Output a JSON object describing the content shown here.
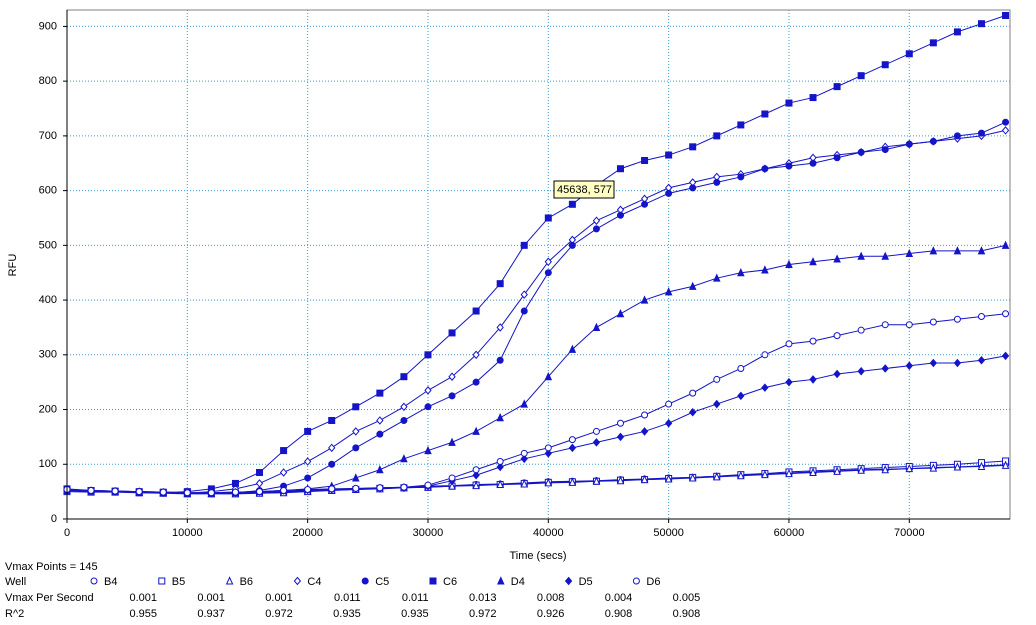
{
  "chart_data": {
    "type": "line",
    "xlabel": "Time (secs)",
    "ylabel": "RFU",
    "xlim": [
      0,
      78370
    ],
    "ylim": [
      0,
      930
    ],
    "xticks": [
      0,
      10000,
      20000,
      30000,
      40000,
      50000,
      60000,
      70000
    ],
    "yticks": [
      0,
      100,
      200,
      300,
      400,
      500,
      600,
      700,
      800,
      900
    ],
    "grid": true,
    "annotation": "45638, 577",
    "x": [
      0,
      2000,
      4000,
      6000,
      8000,
      10000,
      12000,
      14000,
      16000,
      18000,
      20000,
      22000,
      24000,
      26000,
      28000,
      30000,
      32000,
      34000,
      36000,
      38000,
      40000,
      42000,
      44000,
      46000,
      48000,
      50000,
      52000,
      54000,
      56000,
      58000,
      60000,
      62000,
      64000,
      66000,
      68000,
      70000,
      72000,
      74000,
      76000,
      78000
    ],
    "series": [
      {
        "name": "B4",
        "color": "#1414c8",
        "marker": "circle-open",
        "values": [
          52,
          51,
          50,
          49,
          48,
          47,
          47,
          48,
          49,
          50,
          52,
          54,
          55,
          57,
          58,
          60,
          61,
          63,
          64,
          66,
          68,
          69,
          70,
          72,
          73,
          75,
          76,
          78,
          80,
          82,
          84,
          86,
          88,
          90,
          91,
          92,
          94,
          95,
          97,
          99
        ]
      },
      {
        "name": "B5",
        "color": "#1414c8",
        "marker": "square-open",
        "values": [
          54,
          52,
          51,
          50,
          49,
          48,
          47,
          47,
          48,
          49,
          51,
          53,
          54,
          56,
          57,
          58,
          60,
          62,
          63,
          65,
          67,
          68,
          69,
          71,
          72,
          74,
          76,
          78,
          81,
          83,
          86,
          88,
          90,
          92,
          94,
          96,
          98,
          100,
          103,
          106
        ]
      },
      {
        "name": "B6",
        "color": "#1414c8",
        "marker": "triangle-open",
        "values": [
          50,
          49,
          49,
          48,
          47,
          46,
          46,
          46,
          47,
          48,
          50,
          52,
          54,
          55,
          57,
          58,
          60,
          61,
          63,
          64,
          66,
          67,
          69,
          70,
          72,
          73,
          75,
          77,
          79,
          81,
          83,
          85,
          87,
          89,
          90,
          92,
          93,
          95,
          96,
          98
        ]
      },
      {
        "name": "C4",
        "color": "#1414c8",
        "marker": "diamond-open",
        "values": [
          53,
          51,
          50,
          49,
          48,
          47,
          50,
          55,
          65,
          85,
          105,
          130,
          160,
          180,
          205,
          235,
          260,
          300,
          350,
          410,
          470,
          510,
          545,
          565,
          585,
          605,
          615,
          625,
          630,
          640,
          650,
          660,
          665,
          670,
          680,
          685,
          690,
          695,
          700,
          710
        ]
      },
      {
        "name": "C5",
        "color": "#1414c8",
        "marker": "circle",
        "values": [
          52,
          51,
          50,
          49,
          48,
          47,
          47,
          48,
          52,
          60,
          75,
          100,
          130,
          155,
          180,
          205,
          225,
          250,
          290,
          380,
          450,
          500,
          530,
          555,
          575,
          595,
          605,
          615,
          625,
          640,
          645,
          650,
          660,
          670,
          675,
          685,
          690,
          700,
          705,
          725
        ]
      },
      {
        "name": "C6",
        "color": "#1414c8",
        "marker": "square",
        "values": [
          55,
          52,
          50,
          48,
          48,
          50,
          55,
          65,
          85,
          125,
          160,
          180,
          205,
          230,
          260,
          300,
          340,
          380,
          430,
          500,
          550,
          575,
          610,
          640,
          655,
          665,
          680,
          700,
          720,
          740,
          760,
          770,
          790,
          810,
          830,
          850,
          870,
          890,
          905,
          920
        ]
      },
      {
        "name": "D4",
        "color": "#1414c8",
        "marker": "triangle",
        "values": [
          52,
          51,
          50,
          49,
          48,
          47,
          47,
          48,
          50,
          52,
          55,
          60,
          75,
          90,
          110,
          125,
          140,
          160,
          185,
          210,
          260,
          310,
          350,
          375,
          400,
          415,
          425,
          440,
          450,
          455,
          465,
          470,
          475,
          480,
          480,
          485,
          490,
          490,
          490,
          500
        ]
      },
      {
        "name": "D5",
        "color": "#1414c8",
        "marker": "diamond",
        "values": [
          53,
          52,
          51,
          50,
          49,
          48,
          48,
          49,
          50,
          52,
          53,
          54,
          55,
          56,
          57,
          60,
          70,
          80,
          95,
          110,
          120,
          130,
          140,
          150,
          160,
          175,
          195,
          210,
          225,
          240,
          250,
          255,
          265,
          270,
          275,
          280,
          285,
          285,
          290,
          298
        ]
      },
      {
        "name": "D6",
        "color": "#1414c8",
        "marker": "circle-open",
        "values": [
          54,
          52,
          51,
          50,
          49,
          48,
          48,
          49,
          50,
          52,
          54,
          55,
          56,
          57,
          58,
          62,
          75,
          90,
          105,
          120,
          130,
          145,
          160,
          175,
          190,
          210,
          230,
          255,
          275,
          300,
          320,
          325,
          335,
          345,
          355,
          355,
          360,
          365,
          370,
          375
        ]
      }
    ]
  },
  "summary": {
    "title": "Vmax Points = 145",
    "row_labels": [
      "Well",
      "Vmax Per Second",
      "R^2"
    ],
    "vmax": [
      0.001,
      0.001,
      0.001,
      0.011,
      0.011,
      0.013,
      0.008,
      0.004,
      0.005
    ],
    "r2": [
      0.955,
      0.937,
      0.972,
      0.935,
      0.935,
      0.972,
      0.926,
      0.908,
      0.908
    ]
  }
}
